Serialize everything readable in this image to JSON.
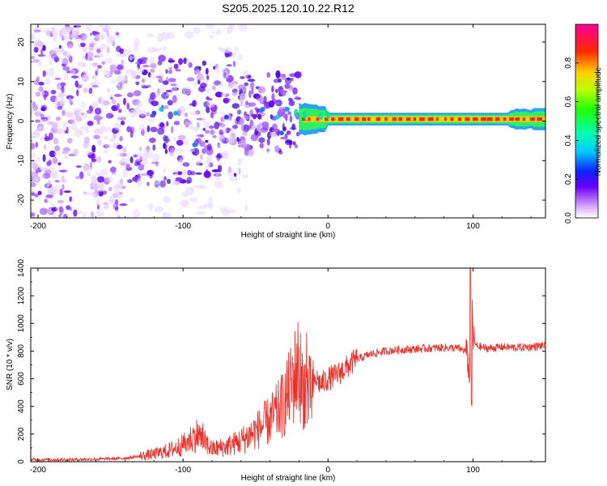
{
  "title": "S205.2025.120.10.22.R12",
  "chart_data": [
    {
      "type": "heatmap",
      "xlabel": "Height of straight line (km)",
      "ylabel": "Frequency (Hz)",
      "xlim": [
        -205,
        150
      ],
      "ylim": [
        -24.5,
        24.5
      ],
      "xticks": [
        -200,
        -100,
        0,
        100
      ],
      "yticks": [
        -20,
        -10,
        0,
        10,
        20
      ],
      "colorbar": {
        "label": "Normalized spectral amplitude",
        "range": [
          0,
          1
        ],
        "ticks": [
          "0.0",
          "0.2",
          "0.4",
          "0.6",
          "0.8"
        ],
        "tick_values": [
          0.0,
          0.2,
          0.4,
          0.6,
          0.8
        ],
        "colors": [
          "#ffffff",
          "#cc66ff",
          "#4400ff",
          "#00ccff",
          "#00ff66",
          "#ffcc00",
          "#ff0000",
          "#ff0099"
        ]
      },
      "features": {
        "narrow_band_start_km": -20,
        "narrow_band_center_hz": 0.5,
        "narrow_band_color": "#ff2020",
        "diffuse_region_color": "#6a00ff"
      }
    },
    {
      "type": "line",
      "xlabel": "Height of straight line (km)",
      "ylabel": "SNR (10 * v/v)",
      "xlim": [
        -205,
        150
      ],
      "ylim": [
        0,
        1400
      ],
      "xticks": [
        -200,
        -100,
        0,
        100
      ],
      "yticks": [
        0,
        200,
        400,
        600,
        800,
        1000,
        1200,
        1400
      ],
      "line_color": "#e8302a",
      "series": [
        {
          "x": [
            -205,
            -180,
            -160,
            -140,
            -130,
            -120,
            -110,
            -100,
            -95,
            -90,
            -85,
            -80,
            -70,
            -60,
            -50,
            -40,
            -35,
            -30,
            -25,
            -22,
            -20,
            -18,
            -15,
            -12,
            -10,
            -8,
            -5,
            0,
            5,
            10,
            15,
            20,
            25,
            30,
            40,
            50,
            60,
            70,
            80,
            90,
            95,
            97,
            98,
            99,
            100,
            102,
            105,
            110,
            120,
            130,
            140,
            150
          ],
          "y": [
            15,
            15,
            18,
            25,
            40,
            55,
            80,
            120,
            160,
            200,
            140,
            90,
            110,
            150,
            220,
            300,
            360,
            430,
            560,
            650,
            700,
            560,
            520,
            480,
            540,
            600,
            560,
            600,
            620,
            660,
            700,
            740,
            760,
            780,
            800,
            810,
            815,
            820,
            825,
            820,
            800,
            700,
            520,
            1400,
            900,
            840,
            830,
            820,
            830,
            825,
            830,
            840
          ]
        }
      ]
    }
  ]
}
